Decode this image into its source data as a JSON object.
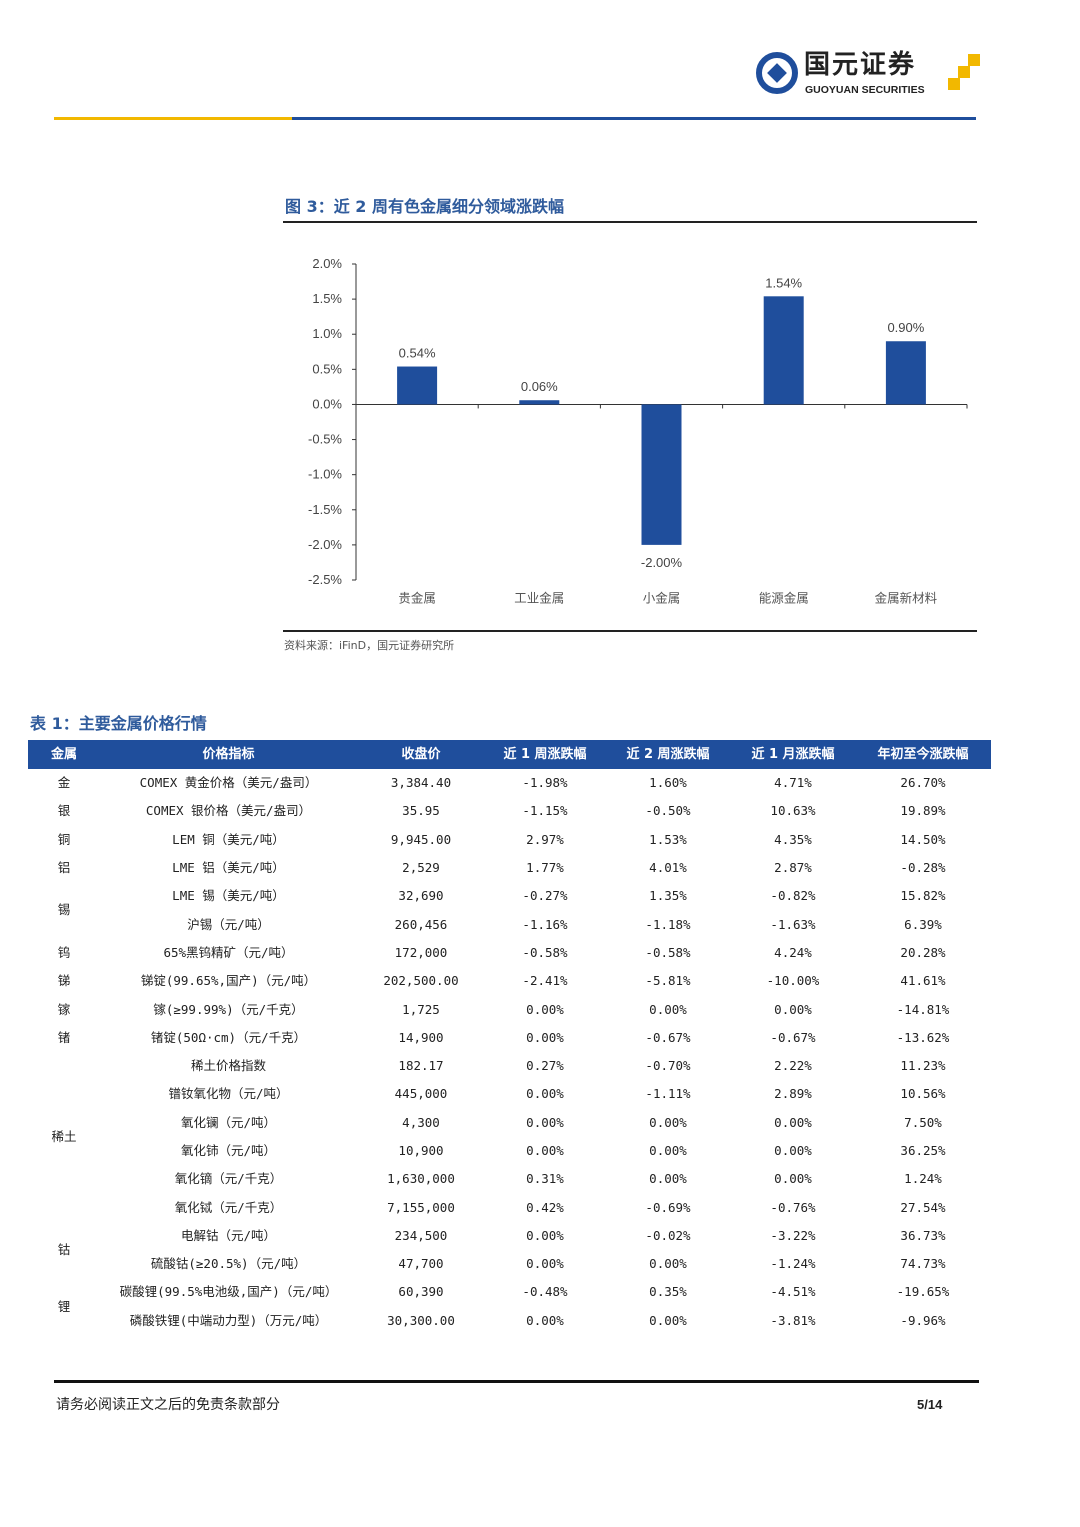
{
  "header": {
    "logo_cn": "国元证券",
    "logo_en": "GUOYUAN SECURITIES",
    "colors": {
      "blue": "#1F4E9C",
      "gold": "#F2B800"
    }
  },
  "figure": {
    "title": "图 3：近 2 周有色金属细分领域涨跌幅",
    "source": "资料来源：iFinD，国元证券研究所"
  },
  "chart_data": {
    "type": "bar",
    "title": "近 2 周有色金属细分领域涨跌幅",
    "categories": [
      "贵金属",
      "工业金属",
      "小金属",
      "能源金属",
      "金属新材料"
    ],
    "values": [
      0.54,
      0.06,
      -2.0,
      1.54,
      0.9
    ],
    "data_labels": [
      "0.54%",
      "0.06%",
      "-2.00%",
      "1.54%",
      "0.90%"
    ],
    "ylim": [
      -2.5,
      2.0
    ],
    "yticks": [
      "2.0%",
      "1.5%",
      "1.0%",
      "0.5%",
      "0.0%",
      "-0.5%",
      "-1.0%",
      "-1.5%",
      "-2.0%",
      "-2.5%"
    ],
    "ytick_values": [
      2.0,
      1.5,
      1.0,
      0.5,
      0.0,
      -0.5,
      -1.0,
      -1.5,
      -2.0,
      -2.5
    ],
    "bar_color": "#1F4E9C",
    "grid": false,
    "xlabel": "",
    "ylabel": ""
  },
  "table": {
    "title": "表 1：主要金属价格行情",
    "headers": [
      "金属",
      "价格指标",
      "收盘价",
      "近 1 周涨跌幅",
      "近 2 周涨跌幅",
      "近 1 月涨跌幅",
      "年初至今涨跌幅"
    ],
    "groups": [
      {
        "metal": "金",
        "rows": [
          [
            "COMEX 黄金价格（美元/盎司）",
            "3,384.40",
            "-1.98%",
            "1.60%",
            "4.71%",
            "26.70%"
          ]
        ]
      },
      {
        "metal": "银",
        "rows": [
          [
            "COMEX 银价格（美元/盎司）",
            "35.95",
            "-1.15%",
            "-0.50%",
            "10.63%",
            "19.89%"
          ]
        ]
      },
      {
        "metal": "铜",
        "rows": [
          [
            "LEM 铜（美元/吨）",
            "9,945.00",
            "2.97%",
            "1.53%",
            "4.35%",
            "14.50%"
          ]
        ]
      },
      {
        "metal": "铝",
        "rows": [
          [
            "LME 铝（美元/吨）",
            "2,529",
            "1.77%",
            "4.01%",
            "2.87%",
            "-0.28%"
          ]
        ]
      },
      {
        "metal": "锡",
        "rows": [
          [
            "LME 锡（美元/吨）",
            "32,690",
            "-0.27%",
            "1.35%",
            "-0.82%",
            "15.82%"
          ],
          [
            "沪锡（元/吨）",
            "260,456",
            "-1.16%",
            "-1.18%",
            "-1.63%",
            "6.39%"
          ]
        ]
      },
      {
        "metal": "钨",
        "rows": [
          [
            "65%黑钨精矿（元/吨）",
            "172,000",
            "-0.58%",
            "-0.58%",
            "4.24%",
            "20.28%"
          ]
        ]
      },
      {
        "metal": "锑",
        "rows": [
          [
            "锑锭(99.65%,国产)（元/吨）",
            "202,500.00",
            "-2.41%",
            "-5.81%",
            "-10.00%",
            "41.61%"
          ]
        ]
      },
      {
        "metal": "镓",
        "rows": [
          [
            "镓(≥99.99%)（元/千克）",
            "1,725",
            "0.00%",
            "0.00%",
            "0.00%",
            "-14.81%"
          ]
        ]
      },
      {
        "metal": "锗",
        "rows": [
          [
            "锗锭(50Ω·cm)（元/千克）",
            "14,900",
            "0.00%",
            "-0.67%",
            "-0.67%",
            "-13.62%"
          ]
        ]
      },
      {
        "metal": "稀土",
        "rows": [
          [
            "稀土价格指数",
            "182.17",
            "0.27%",
            "-0.70%",
            "2.22%",
            "11.23%"
          ],
          [
            "镨钕氧化物（元/吨）",
            "445,000",
            "0.00%",
            "-1.11%",
            "2.89%",
            "10.56%"
          ],
          [
            "氧化镧（元/吨）",
            "4,300",
            "0.00%",
            "0.00%",
            "0.00%",
            "7.50%"
          ],
          [
            "氧化铈（元/吨）",
            "10,900",
            "0.00%",
            "0.00%",
            "0.00%",
            "36.25%"
          ],
          [
            "氧化镝（元/千克）",
            "1,630,000",
            "0.31%",
            "0.00%",
            "0.00%",
            "1.24%"
          ],
          [
            "氧化铽（元/千克）",
            "7,155,000",
            "0.42%",
            "-0.69%",
            "-0.76%",
            "27.54%"
          ]
        ]
      },
      {
        "metal": "钴",
        "rows": [
          [
            "电解钴（元/吨）",
            "234,500",
            "0.00%",
            "-0.02%",
            "-3.22%",
            "36.73%"
          ],
          [
            "硫酸钴(≥20.5%)（元/吨）",
            "47,700",
            "0.00%",
            "0.00%",
            "-1.24%",
            "74.73%"
          ]
        ]
      },
      {
        "metal": "锂",
        "rows": [
          [
            "碳酸锂(99.5%电池级,国产)（元/吨）",
            "60,390",
            "-0.48%",
            "0.35%",
            "-4.51%",
            "-19.65%"
          ],
          [
            "磷酸铁锂(中端动力型)（万元/吨）",
            "30,300.00",
            "0.00%",
            "0.00%",
            "-3.81%",
            "-9.96%"
          ]
        ]
      }
    ]
  },
  "footer": {
    "disclaimer": "请务必阅读正文之后的免责条款部分",
    "page": "5/14"
  }
}
